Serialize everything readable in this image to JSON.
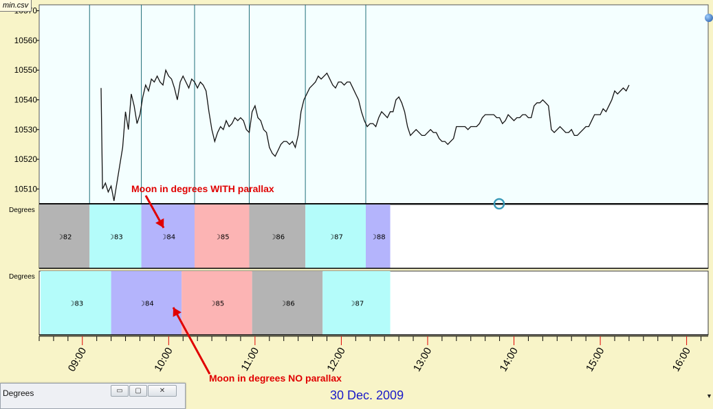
{
  "window": {
    "file_tab": "min.csv",
    "mini_window_title": "Degrees",
    "win_buttons": [
      "▭",
      "▢",
      "✕"
    ],
    "date_label": "30 Dec. 2009"
  },
  "panels": {
    "parallax_label": "Degrees",
    "no_parallax_label": "Degrees"
  },
  "annotations": [
    {
      "text": "Moon in degrees WITH parallax",
      "color": "#e00000"
    },
    {
      "text": "Moon in degrees NO parallax",
      "color": "#e00000"
    }
  ],
  "colors": {
    "price_bg": "#f4ffff",
    "separator": "#1f6e78",
    "band_gray": "#b4b4b4",
    "band_cyan": "#b4fcfa",
    "band_blue": "#b4b4fc",
    "band_pink": "#fcb4b4",
    "arrow": "#e00000",
    "time_label": "#000000"
  },
  "chart_data": {
    "type": "line",
    "title": "",
    "ylim": [
      10505,
      10572
    ],
    "yticks": [
      "10510",
      "10520",
      "10530",
      "10540",
      "10550",
      "10560",
      "10570"
    ],
    "xticks": [
      "09:00",
      "10:00",
      "11:00",
      "12:00",
      "13:00",
      "14:00",
      "15:00",
      "16:00"
    ],
    "xlim_minutes": [
      510,
      975
    ],
    "price": [
      [
        553,
        10544
      ],
      [
        554,
        10510
      ],
      [
        556,
        10512
      ],
      [
        558,
        10509
      ],
      [
        560,
        10511
      ],
      [
        562,
        10506
      ],
      [
        564,
        10512
      ],
      [
        566,
        10518
      ],
      [
        568,
        10524
      ],
      [
        570,
        10536
      ],
      [
        572,
        10530
      ],
      [
        574,
        10542
      ],
      [
        576,
        10538
      ],
      [
        578,
        10532
      ],
      [
        580,
        10535
      ],
      [
        582,
        10541
      ],
      [
        584,
        10545
      ],
      [
        586,
        10543
      ],
      [
        588,
        10547
      ],
      [
        590,
        10546
      ],
      [
        592,
        10548
      ],
      [
        594,
        10546
      ],
      [
        596,
        10545
      ],
      [
        598,
        10550
      ],
      [
        600,
        10548
      ],
      [
        602,
        10547
      ],
      [
        604,
        10544
      ],
      [
        606,
        10540
      ],
      [
        608,
        10546
      ],
      [
        610,
        10548
      ],
      [
        612,
        10546
      ],
      [
        614,
        10544
      ],
      [
        616,
        10547
      ],
      [
        618,
        10546
      ],
      [
        620,
        10544
      ],
      [
        622,
        10546
      ],
      [
        624,
        10545
      ],
      [
        626,
        10543
      ],
      [
        628,
        10536
      ],
      [
        630,
        10530
      ],
      [
        632,
        10526
      ],
      [
        634,
        10529
      ],
      [
        636,
        10531
      ],
      [
        638,
        10530
      ],
      [
        640,
        10533
      ],
      [
        642,
        10531
      ],
      [
        644,
        10532
      ],
      [
        646,
        10534
      ],
      [
        648,
        10533
      ],
      [
        650,
        10534
      ],
      [
        652,
        10533
      ],
      [
        654,
        10530
      ],
      [
        656,
        10529
      ],
      [
        658,
        10536
      ],
      [
        660,
        10538
      ],
      [
        662,
        10534
      ],
      [
        664,
        10533
      ],
      [
        666,
        10530
      ],
      [
        668,
        10529
      ],
      [
        670,
        10524
      ],
      [
        672,
        10522
      ],
      [
        674,
        10521
      ],
      [
        676,
        10523
      ],
      [
        678,
        10525
      ],
      [
        680,
        10526
      ],
      [
        682,
        10526
      ],
      [
        684,
        10525
      ],
      [
        686,
        10526
      ],
      [
        688,
        10524
      ],
      [
        690,
        10528
      ],
      [
        692,
        10536
      ],
      [
        694,
        10540
      ],
      [
        696,
        10542
      ],
      [
        698,
        10544
      ],
      [
        700,
        10545
      ],
      [
        702,
        10546
      ],
      [
        704,
        10548
      ],
      [
        706,
        10547
      ],
      [
        708,
        10548
      ],
      [
        710,
        10549
      ],
      [
        712,
        10547
      ],
      [
        714,
        10545
      ],
      [
        716,
        10544
      ],
      [
        718,
        10546
      ],
      [
        720,
        10546
      ],
      [
        722,
        10545
      ],
      [
        724,
        10546
      ],
      [
        726,
        10546
      ],
      [
        728,
        10544
      ],
      [
        730,
        10542
      ],
      [
        732,
        10540
      ],
      [
        734,
        10536
      ],
      [
        736,
        10533
      ],
      [
        738,
        10531
      ],
      [
        740,
        10532
      ],
      [
        742,
        10532
      ],
      [
        744,
        10531
      ],
      [
        746,
        10534
      ],
      [
        748,
        10536
      ],
      [
        750,
        10535
      ],
      [
        752,
        10534
      ],
      [
        754,
        10536
      ],
      [
        756,
        10536
      ],
      [
        758,
        10540
      ],
      [
        760,
        10541
      ],
      [
        762,
        10539
      ],
      [
        764,
        10536
      ],
      [
        766,
        10531
      ],
      [
        768,
        10528
      ],
      [
        770,
        10529
      ],
      [
        772,
        10530
      ],
      [
        774,
        10529
      ],
      [
        776,
        10528
      ],
      [
        778,
        10528
      ],
      [
        780,
        10529
      ],
      [
        782,
        10530
      ],
      [
        784,
        10529
      ],
      [
        786,
        10529
      ],
      [
        788,
        10527
      ],
      [
        790,
        10526
      ],
      [
        792,
        10526
      ],
      [
        794,
        10525
      ],
      [
        796,
        10526
      ],
      [
        798,
        10527
      ],
      [
        800,
        10531
      ],
      [
        802,
        10531
      ],
      [
        804,
        10531
      ],
      [
        806,
        10531
      ],
      [
        808,
        10530
      ],
      [
        810,
        10531
      ],
      [
        812,
        10531
      ],
      [
        814,
        10531
      ],
      [
        816,
        10532
      ],
      [
        818,
        10534
      ],
      [
        820,
        10535
      ],
      [
        822,
        10535
      ],
      [
        824,
        10535
      ],
      [
        826,
        10535
      ],
      [
        828,
        10534
      ],
      [
        830,
        10534
      ],
      [
        832,
        10532
      ],
      [
        834,
        10533
      ],
      [
        836,
        10535
      ],
      [
        838,
        10534
      ],
      [
        840,
        10533
      ],
      [
        842,
        10534
      ],
      [
        844,
        10534
      ],
      [
        846,
        10535
      ],
      [
        848,
        10535
      ],
      [
        850,
        10534
      ],
      [
        852,
        10534
      ],
      [
        854,
        10538
      ],
      [
        856,
        10539
      ],
      [
        858,
        10539
      ],
      [
        860,
        10540
      ],
      [
        862,
        10539
      ],
      [
        864,
        10538
      ],
      [
        866,
        10530
      ],
      [
        868,
        10529
      ],
      [
        870,
        10530
      ],
      [
        872,
        10531
      ],
      [
        874,
        10530
      ],
      [
        876,
        10529
      ],
      [
        878,
        10529
      ],
      [
        880,
        10530
      ],
      [
        882,
        10528
      ],
      [
        884,
        10528
      ],
      [
        886,
        10529
      ],
      [
        888,
        10530
      ],
      [
        890,
        10531
      ],
      [
        892,
        10531
      ],
      [
        894,
        10533
      ],
      [
        896,
        10535
      ],
      [
        898,
        10535
      ],
      [
        900,
        10535
      ],
      [
        902,
        10537
      ],
      [
        904,
        10536
      ],
      [
        906,
        10538
      ],
      [
        908,
        10540
      ],
      [
        910,
        10543
      ],
      [
        912,
        10542
      ],
      [
        914,
        10543
      ],
      [
        916,
        10544
      ],
      [
        918,
        10543
      ],
      [
        920,
        10545
      ]
    ],
    "separators_minutes": [
      545,
      581,
      618,
      656,
      695,
      737
    ],
    "parallax_bands": [
      {
        "label": "☽82",
        "start": 510,
        "end": 545,
        "color": "gray"
      },
      {
        "label": "☽83",
        "start": 545,
        "end": 581,
        "color": "cyan"
      },
      {
        "label": "☽84",
        "start": 581,
        "end": 618,
        "color": "blue"
      },
      {
        "label": "☽85",
        "start": 618,
        "end": 656,
        "color": "pink"
      },
      {
        "label": "☽86",
        "start": 656,
        "end": 695,
        "color": "gray"
      },
      {
        "label": "☽87",
        "start": 695,
        "end": 737,
        "color": "cyan"
      },
      {
        "label": "☽88",
        "start": 737,
        "end": 754,
        "color": "blue"
      }
    ],
    "no_parallax_bands": [
      {
        "label": "☽83",
        "start": 511,
        "end": 560,
        "color": "cyan"
      },
      {
        "label": "☽84",
        "start": 560,
        "end": 609,
        "color": "blue"
      },
      {
        "label": "☽85",
        "start": 609,
        "end": 658,
        "color": "pink"
      },
      {
        "label": "☽86",
        "start": 658,
        "end": 707,
        "color": "gray"
      },
      {
        "label": "☽87",
        "start": 707,
        "end": 754,
        "color": "cyan"
      }
    ]
  }
}
